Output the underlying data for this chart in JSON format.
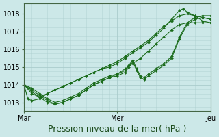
{
  "bg_color": "#cce8e8",
  "grid_color": "#aacccc",
  "line_color": "#1a6b1a",
  "marker_color": "#1a6b1a",
  "ylabel_values": [
    1013,
    1014,
    1015,
    1016,
    1017,
    1018
  ],
  "xlim": [
    0,
    48
  ],
  "ylim": [
    1012.6,
    1018.6
  ],
  "xlabel": "Pression niveau de la mer( hPa )",
  "xtick_positions": [
    0,
    24,
    48
  ],
  "xtick_labels": [
    "Mar",
    "Mer",
    "Jeu"
  ],
  "tick_fontsize": 7,
  "label_fontsize": 9,
  "series": [
    {
      "x": [
        0,
        1,
        2,
        4,
        6,
        8,
        10,
        12,
        14,
        16,
        18,
        20,
        22,
        24,
        26,
        28,
        30,
        32,
        34,
        36,
        38,
        40,
        41,
        42,
        44,
        46,
        48
      ],
      "y": [
        1014.0,
        1013.2,
        1013.1,
        1013.2,
        1013.5,
        1013.7,
        1013.9,
        1014.1,
        1014.3,
        1014.5,
        1014.7,
        1014.9,
        1015.0,
        1015.2,
        1015.5,
        1015.8,
        1016.1,
        1016.4,
        1016.8,
        1017.2,
        1017.7,
        1018.2,
        1018.3,
        1018.1,
        1017.9,
        1017.6,
        1017.5
      ]
    },
    {
      "x": [
        0,
        2,
        4,
        6,
        8,
        10,
        12,
        14,
        16,
        18,
        20,
        22,
        24,
        26,
        28,
        30,
        32,
        34,
        36,
        38,
        40,
        42,
        44,
        46,
        48
      ],
      "y": [
        1014.0,
        1013.5,
        1013.3,
        1013.5,
        1013.7,
        1013.9,
        1014.1,
        1014.3,
        1014.5,
        1014.7,
        1014.9,
        1015.1,
        1015.3,
        1015.6,
        1015.9,
        1016.2,
        1016.5,
        1016.9,
        1017.3,
        1017.6,
        1017.9,
        1018.0,
        1017.9,
        1017.8,
        1017.7
      ]
    },
    {
      "x": [
        0,
        2,
        4,
        6,
        8,
        10,
        12,
        14,
        16,
        18,
        20,
        22,
        24,
        26,
        27,
        28,
        29,
        30,
        31,
        32,
        34,
        36,
        38,
        40,
        42,
        44,
        46,
        48
      ],
      "y": [
        1014.0,
        1013.7,
        1013.4,
        1013.1,
        1012.9,
        1013.0,
        1013.2,
        1013.4,
        1013.7,
        1014.0,
        1014.2,
        1014.4,
        1014.5,
        1014.7,
        1015.0,
        1015.3,
        1014.8,
        1014.4,
        1014.3,
        1014.5,
        1014.8,
        1015.1,
        1015.5,
        1016.6,
        1017.4,
        1017.7,
        1017.8,
        1017.7
      ]
    },
    {
      "x": [
        0,
        2,
        4,
        6,
        8,
        10,
        12,
        14,
        16,
        18,
        20,
        22,
        24,
        26,
        27,
        28,
        29,
        30,
        31,
        32,
        34,
        36,
        38,
        40,
        42,
        44,
        46,
        48
      ],
      "y": [
        1014.0,
        1013.8,
        1013.5,
        1013.2,
        1013.0,
        1013.1,
        1013.3,
        1013.5,
        1013.8,
        1014.1,
        1014.3,
        1014.5,
        1014.6,
        1014.8,
        1015.1,
        1015.4,
        1014.9,
        1014.5,
        1014.4,
        1014.6,
        1014.9,
        1015.2,
        1015.6,
        1016.7,
        1017.5,
        1017.8,
        1017.9,
        1017.9
      ]
    },
    {
      "x": [
        0,
        2,
        4,
        6,
        8,
        10,
        12,
        14,
        16,
        18,
        20,
        22,
        24,
        26,
        28,
        30,
        32,
        34,
        36,
        38,
        40,
        42,
        44,
        46,
        48
      ],
      "y": [
        1014.0,
        1013.6,
        1013.3,
        1013.0,
        1012.9,
        1013.0,
        1013.2,
        1013.4,
        1013.7,
        1014.0,
        1014.2,
        1014.4,
        1014.6,
        1014.9,
        1015.2,
        1015.5,
        1015.9,
        1016.3,
        1016.7,
        1017.1,
        1017.4,
        1017.5,
        1017.5,
        1017.5,
        1017.5
      ]
    }
  ]
}
